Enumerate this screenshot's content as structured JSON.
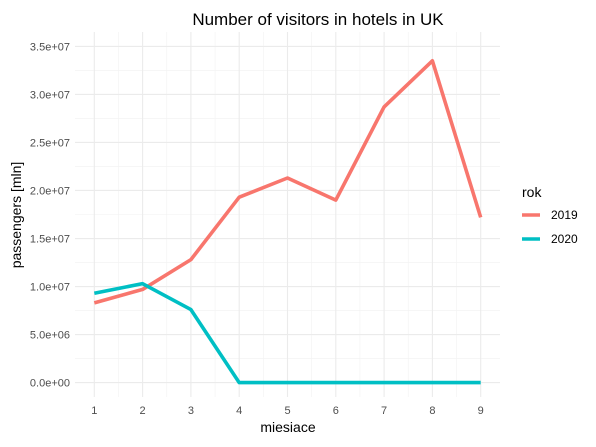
{
  "chart_data": {
    "type": "line",
    "title": "Number of visitors in hotels in UK",
    "xlabel": "miesiace",
    "ylabel": "passengers [mln]",
    "x": [
      1,
      2,
      3,
      4,
      5,
      6,
      7,
      8,
      9
    ],
    "x_tick_labels": [
      "1",
      "2",
      "3",
      "4",
      "5",
      "6",
      "7",
      "8",
      "9"
    ],
    "xlim": [
      0.6,
      9.4
    ],
    "ylim": [
      -1500000,
      36500000
    ],
    "y_ticks": [
      0,
      5000000,
      10000000,
      15000000,
      20000000,
      25000000,
      30000000,
      35000000
    ],
    "y_tick_labels": [
      "0.0e+00",
      "5.0e+06",
      "1.0e+07",
      "1.5e+07",
      "2.0e+07",
      "2.5e+07",
      "3.0e+07",
      "3.5e+07"
    ],
    "grid": true,
    "legend": {
      "title": "rok",
      "position": "right"
    },
    "series": [
      {
        "name": "2019",
        "color": "#F8766D",
        "values": [
          8300000,
          9700000,
          12800000,
          19300000,
          21300000,
          19000000,
          28700000,
          33500000,
          17200000
        ]
      },
      {
        "name": "2020",
        "color": "#00BFC4",
        "values": [
          9300000,
          10300000,
          7600000,
          0,
          0,
          0,
          0,
          0,
          0
        ]
      }
    ]
  }
}
